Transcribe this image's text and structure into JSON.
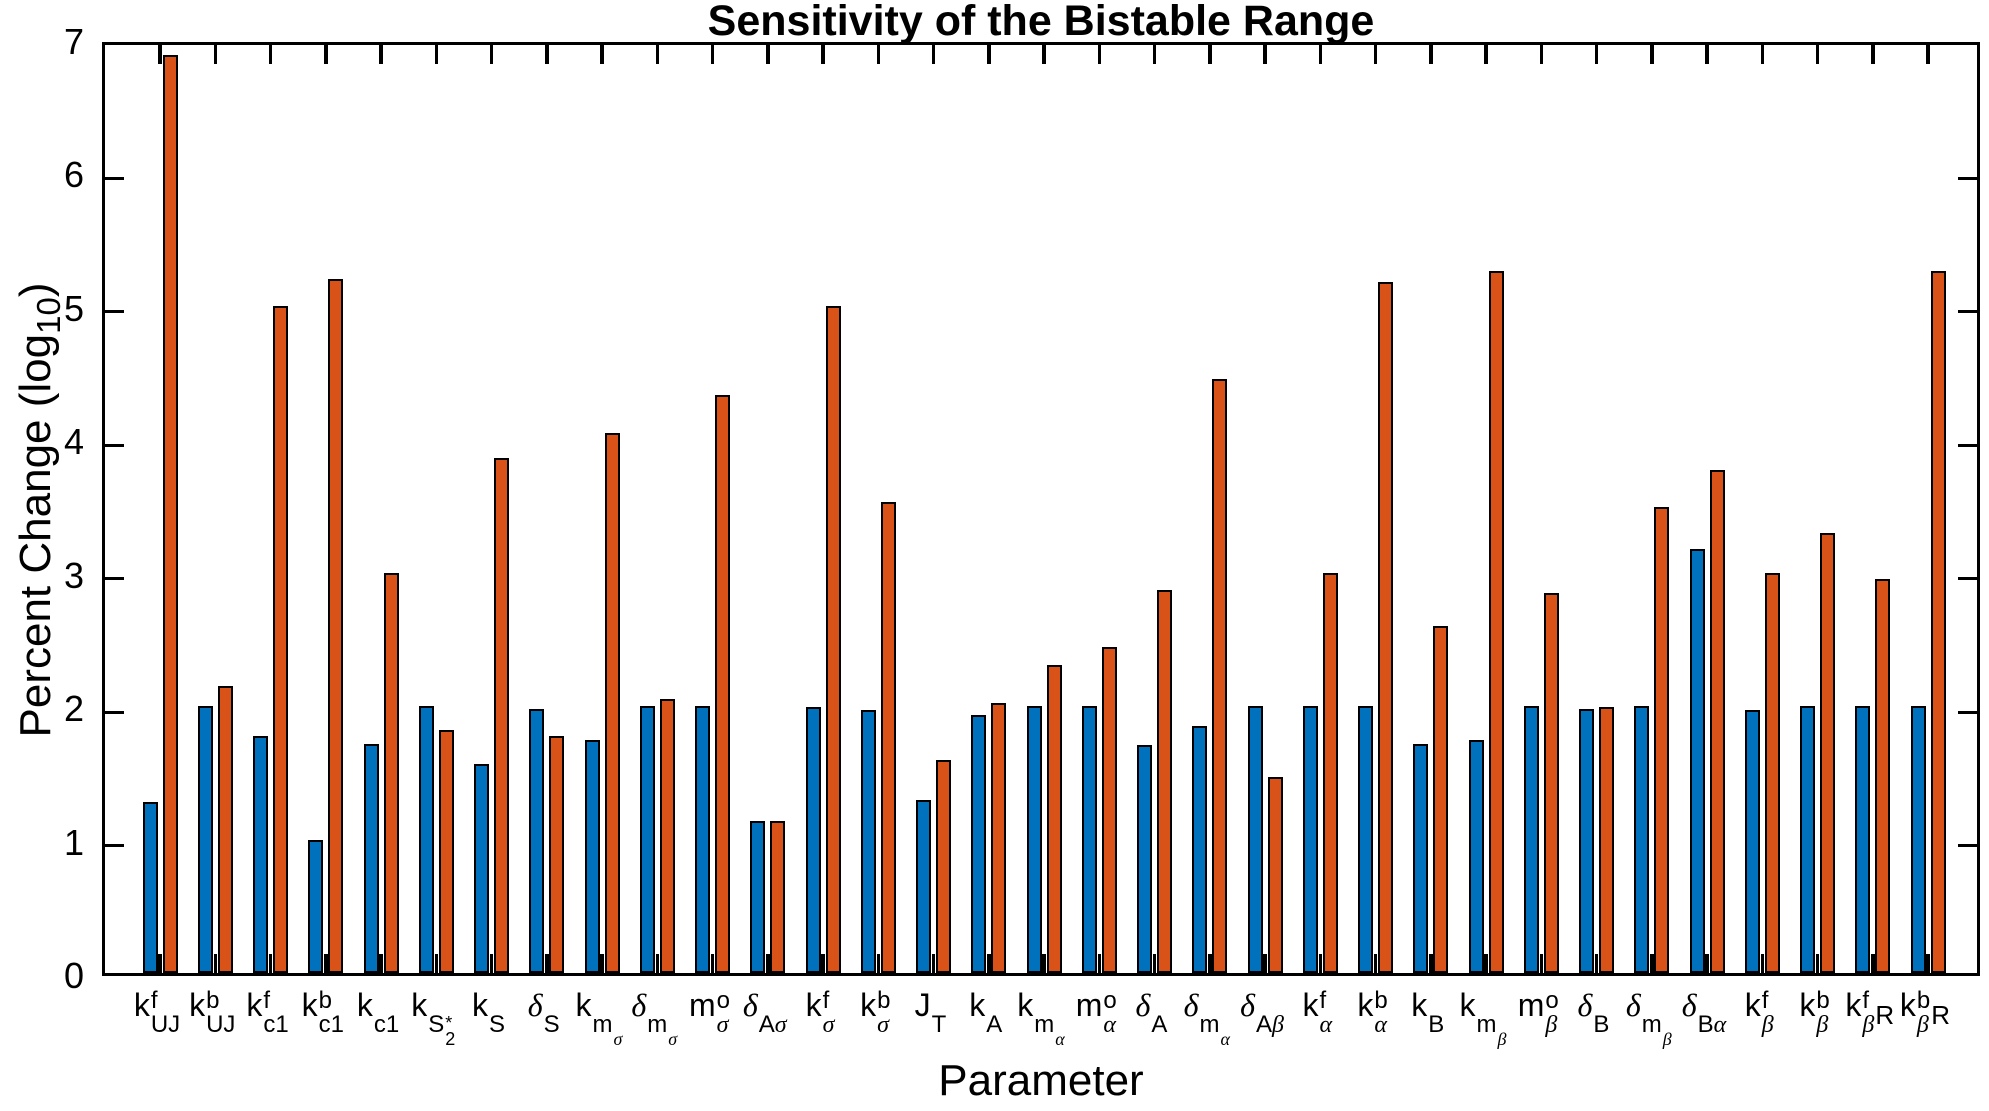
{
  "title": "Sensitivity of the Bistable Range",
  "colors": {
    "series1": "#0072BD",
    "series2": "#D95319",
    "bar_edge": "#000000",
    "axis": "#000000",
    "background": "#FFFFFF"
  },
  "ylabel": {
    "pre": "Percent Change (log",
    "sub": "10",
    "post": ")"
  },
  "chart_data": {
    "type": "bar",
    "title": "Sensitivity of the Bistable Range",
    "xlabel": "Parameter",
    "ylabel": "Percent Change (log10)",
    "ylim": [
      0,
      7
    ],
    "yticks": [
      0,
      1,
      2,
      3,
      4,
      5,
      6,
      7
    ],
    "grid": false,
    "legend": "none",
    "categories": [
      "k^f_UJ",
      "k^b_UJ",
      "k^f_c1",
      "k^b_c1",
      "k_c1",
      "k_S2*",
      "k_S",
      "δ_S",
      "k_mσ",
      "δ_mσ",
      "m^o_σ",
      "δ_Aσ",
      "k^f_σ",
      "k^b_σ",
      "J_T",
      "k_A",
      "k_mα",
      "m^o_α",
      "δ_A",
      "δ_mα",
      "δ_Aβ",
      "k^f_α",
      "k^b_α",
      "k_B",
      "k_mβ",
      "m^o_β",
      "δ_B",
      "δ_mβ",
      "δ_Bα",
      "k^f_β",
      "k^b_β",
      "k^f_βR",
      "k^b_βR"
    ],
    "category_labels": [
      {
        "base": "k",
        "sup": "f",
        "sub": "UJ"
      },
      {
        "base": "k",
        "sup": "b",
        "sub": "UJ"
      },
      {
        "base": "k",
        "sup": "f",
        "sub": "c1"
      },
      {
        "base": "k",
        "sup": "b",
        "sub": "c1"
      },
      {
        "base": "k",
        "sub": "c1"
      },
      {
        "base": "k",
        "sub": "S",
        "subsup": "*",
        "subsub": "2"
      },
      {
        "base": "k",
        "sub": "S"
      },
      {
        "base": "δ",
        "sub": "S"
      },
      {
        "base": "k",
        "sub": "m",
        "subsub": "σ"
      },
      {
        "base": "δ",
        "sub": "m",
        "subsub": "σ"
      },
      {
        "base": "m",
        "sup": "o",
        "sub": "σ"
      },
      {
        "base": "δ",
        "sub": "Aσ"
      },
      {
        "base": "k",
        "sup": "f",
        "sub": "σ"
      },
      {
        "base": "k",
        "sup": "b",
        "sub": "σ"
      },
      {
        "base": "J",
        "sub": "T"
      },
      {
        "base": "k",
        "sub": "A"
      },
      {
        "base": "k",
        "sub": "m",
        "subsub": "α"
      },
      {
        "base": "m",
        "sup": "o",
        "sub": "α"
      },
      {
        "base": "δ",
        "sub": "A"
      },
      {
        "base": "δ",
        "sub": "m",
        "subsub": "α"
      },
      {
        "base": "δ",
        "sub": "Aβ"
      },
      {
        "base": "k",
        "sup": "f",
        "sub": "α"
      },
      {
        "base": "k",
        "sup": "b",
        "sub": "α"
      },
      {
        "base": "k",
        "sub": "B"
      },
      {
        "base": "k",
        "sub": "m",
        "subsub": "β"
      },
      {
        "base": "m",
        "sup": "o",
        "sub": "β"
      },
      {
        "base": "δ",
        "sub": "B"
      },
      {
        "base": "δ",
        "sub": "m",
        "subsub": "β"
      },
      {
        "base": "δ",
        "sub": "Bα"
      },
      {
        "base": "k",
        "sup": "f",
        "sub": "β"
      },
      {
        "base": "k",
        "sup": "b",
        "sub": "β"
      },
      {
        "base": "k",
        "sup": "f",
        "sub": "β",
        "after": "R"
      },
      {
        "base": "k",
        "sup": "b",
        "sub": "β",
        "after": "R"
      }
    ],
    "series": [
      {
        "name": "series-1",
        "color": "#0072BD",
        "values": [
          1.28,
          2.0,
          1.78,
          1.0,
          1.72,
          2.0,
          1.57,
          1.98,
          1.75,
          2.0,
          2.0,
          1.14,
          1.99,
          1.97,
          1.3,
          1.93,
          2.0,
          2.0,
          1.71,
          1.85,
          2.0,
          2.0,
          2.0,
          1.72,
          1.75,
          2.0,
          1.98,
          2.0,
          3.18,
          1.97,
          2.0,
          2.0,
          2.0
        ]
      },
      {
        "name": "series-2",
        "color": "#D95319",
        "values": [
          6.88,
          2.15,
          5.0,
          5.2,
          3.0,
          1.82,
          3.86,
          1.78,
          4.05,
          2.05,
          4.33,
          1.14,
          5.0,
          3.53,
          1.6,
          2.02,
          2.31,
          2.44,
          2.87,
          4.45,
          1.47,
          3.0,
          5.18,
          2.6,
          5.26,
          2.85,
          1.99,
          3.49,
          3.77,
          3.0,
          3.3,
          2.95,
          5.26
        ]
      }
    ]
  }
}
